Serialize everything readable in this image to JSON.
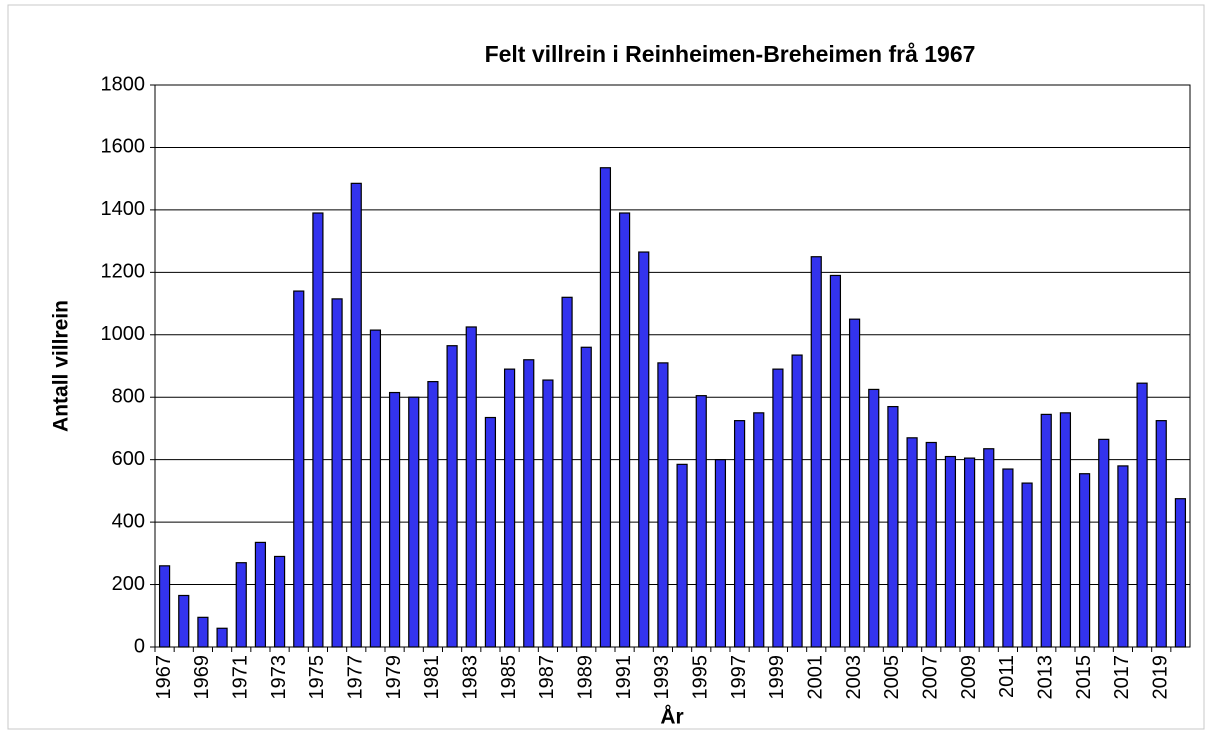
{
  "chart_data": {
    "type": "bar",
    "title": "Felt villrein i Reinheimen-Breheimen frå 1967",
    "x_label": "År",
    "y_label": "Antall villrein",
    "categories": [
      "1967",
      null,
      "1969",
      null,
      "1971",
      null,
      "1973",
      null,
      "1975",
      null,
      "1977",
      null,
      "1979",
      null,
      "1981",
      null,
      "1983",
      null,
      "1985",
      null,
      "1987",
      null,
      "1989",
      null,
      "1991",
      null,
      "1993",
      null,
      "1995",
      null,
      "1997",
      null,
      "1999",
      null,
      "2001",
      null,
      "2003",
      null,
      "2005",
      null,
      "2007",
      null,
      "2009",
      null,
      "2011",
      null,
      "2013",
      null,
      "2015",
      null,
      "2017",
      null,
      "2019",
      null
    ],
    "values": [
      260,
      165,
      95,
      60,
      270,
      335,
      290,
      1140,
      1390,
      1115,
      1485,
      1015,
      815,
      800,
      850,
      965,
      1025,
      735,
      890,
      920,
      855,
      1120,
      960,
      1535,
      1390,
      1265,
      910,
      585,
      805,
      600,
      725,
      750,
      890,
      935,
      1250,
      1190,
      1050,
      825,
      770,
      670,
      655,
      610,
      605,
      635,
      570,
      525,
      745,
      750,
      555,
      665,
      580,
      845,
      725,
      475
    ],
    "color": "#3333ee",
    "ylim": [
      0,
      1800
    ],
    "yticks": [
      0,
      200,
      400,
      600,
      800,
      1000,
      1200,
      1400,
      1600,
      1800
    ],
    "grid": true
  }
}
